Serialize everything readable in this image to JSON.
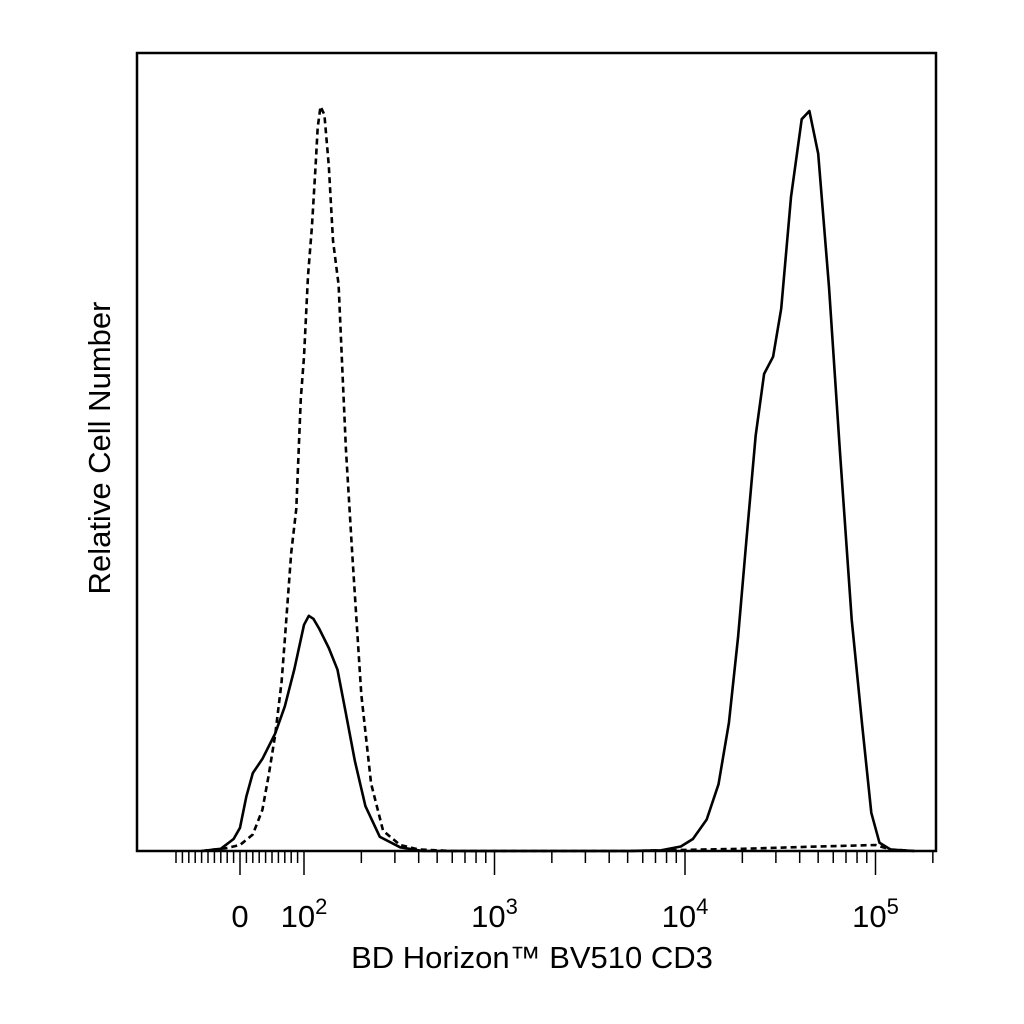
{
  "chart_data": {
    "type": "line",
    "xlabel": "BD Horizon™ BV510 CD3",
    "ylabel": "Relative Cell Number",
    "x_scale": "biexponential",
    "xlim": [
      -120,
      250000
    ],
    "ylim": [
      0,
      100
    ],
    "grid": false,
    "legend": "none",
    "x_tick_labels": [
      {
        "value": 0,
        "base": "0",
        "exp": ""
      },
      {
        "value": 100,
        "base": "10",
        "exp": "2"
      },
      {
        "value": 1000,
        "base": "10",
        "exp": "3"
      },
      {
        "value": 10000,
        "base": "10",
        "exp": "4"
      },
      {
        "value": 100000,
        "base": "10",
        "exp": "5"
      }
    ],
    "series": [
      {
        "style": "dashed",
        "color": "#000000",
        "points": [
          [
            -60,
            0
          ],
          [
            -20,
            0.4
          ],
          [
            0,
            0.8
          ],
          [
            20,
            2.2
          ],
          [
            35,
            5.5
          ],
          [
            45,
            10.2
          ],
          [
            55,
            15.5
          ],
          [
            65,
            22.6
          ],
          [
            70,
            28.2
          ],
          [
            80,
            39.8
          ],
          [
            88,
            45.7
          ],
          [
            95,
            60.4
          ],
          [
            100,
            66.0
          ],
          [
            105,
            76.8
          ],
          [
            110,
            83.3
          ],
          [
            115,
            91.5
          ],
          [
            118,
            96.6
          ],
          [
            122,
            99.4
          ],
          [
            128,
            98.3
          ],
          [
            135,
            91.5
          ],
          [
            142,
            81.5
          ],
          [
            152,
            75.6
          ],
          [
            160,
            62.6
          ],
          [
            166,
            53.7
          ],
          [
            180,
            38.9
          ],
          [
            200,
            20.9
          ],
          [
            225,
            9.0
          ],
          [
            260,
            2.7
          ],
          [
            320,
            0.8
          ],
          [
            400,
            0.2
          ],
          [
            600,
            0
          ],
          [
            5000,
            0
          ],
          [
            20000,
            0.3
          ],
          [
            50000,
            0.6
          ],
          [
            100000,
            0.8
          ],
          [
            120000,
            0.2
          ],
          [
            160000,
            0
          ]
        ]
      },
      {
        "style": "solid",
        "color": "#000000",
        "points": [
          [
            -60,
            0
          ],
          [
            -30,
            0.3
          ],
          [
            -10,
            1.6
          ],
          [
            0,
            3.1
          ],
          [
            10,
            7.3
          ],
          [
            20,
            10.4
          ],
          [
            35,
            12.3
          ],
          [
            55,
            15.7
          ],
          [
            70,
            19.3
          ],
          [
            85,
            24.3
          ],
          [
            100,
            30.2
          ],
          [
            106,
            31.4
          ],
          [
            112,
            31.0
          ],
          [
            120,
            29.7
          ],
          [
            135,
            27.1
          ],
          [
            150,
            24.2
          ],
          [
            165,
            18.7
          ],
          [
            185,
            12.0
          ],
          [
            210,
            6.0
          ],
          [
            250,
            1.9
          ],
          [
            320,
            0.5
          ],
          [
            420,
            0
          ],
          [
            5000,
            0
          ],
          [
            7500,
            0.1
          ],
          [
            9500,
            0.6
          ],
          [
            11000,
            1.6
          ],
          [
            13000,
            4.2
          ],
          [
            15000,
            8.9
          ],
          [
            17000,
            17.1
          ],
          [
            19000,
            28.6
          ],
          [
            21000,
            41.5
          ],
          [
            23500,
            55.5
          ],
          [
            26000,
            63.7
          ],
          [
            29000,
            66.0
          ],
          [
            32000,
            72.4
          ],
          [
            36000,
            87.3
          ],
          [
            41000,
            97.7
          ],
          [
            45000,
            98.8
          ],
          [
            50000,
            93.1
          ],
          [
            57000,
            75.3
          ],
          [
            65000,
            53.4
          ],
          [
            75000,
            30.9
          ],
          [
            85000,
            16.9
          ],
          [
            95000,
            5.1
          ],
          [
            105000,
            1.1
          ],
          [
            120000,
            0.2
          ],
          [
            160000,
            0
          ]
        ]
      }
    ]
  }
}
